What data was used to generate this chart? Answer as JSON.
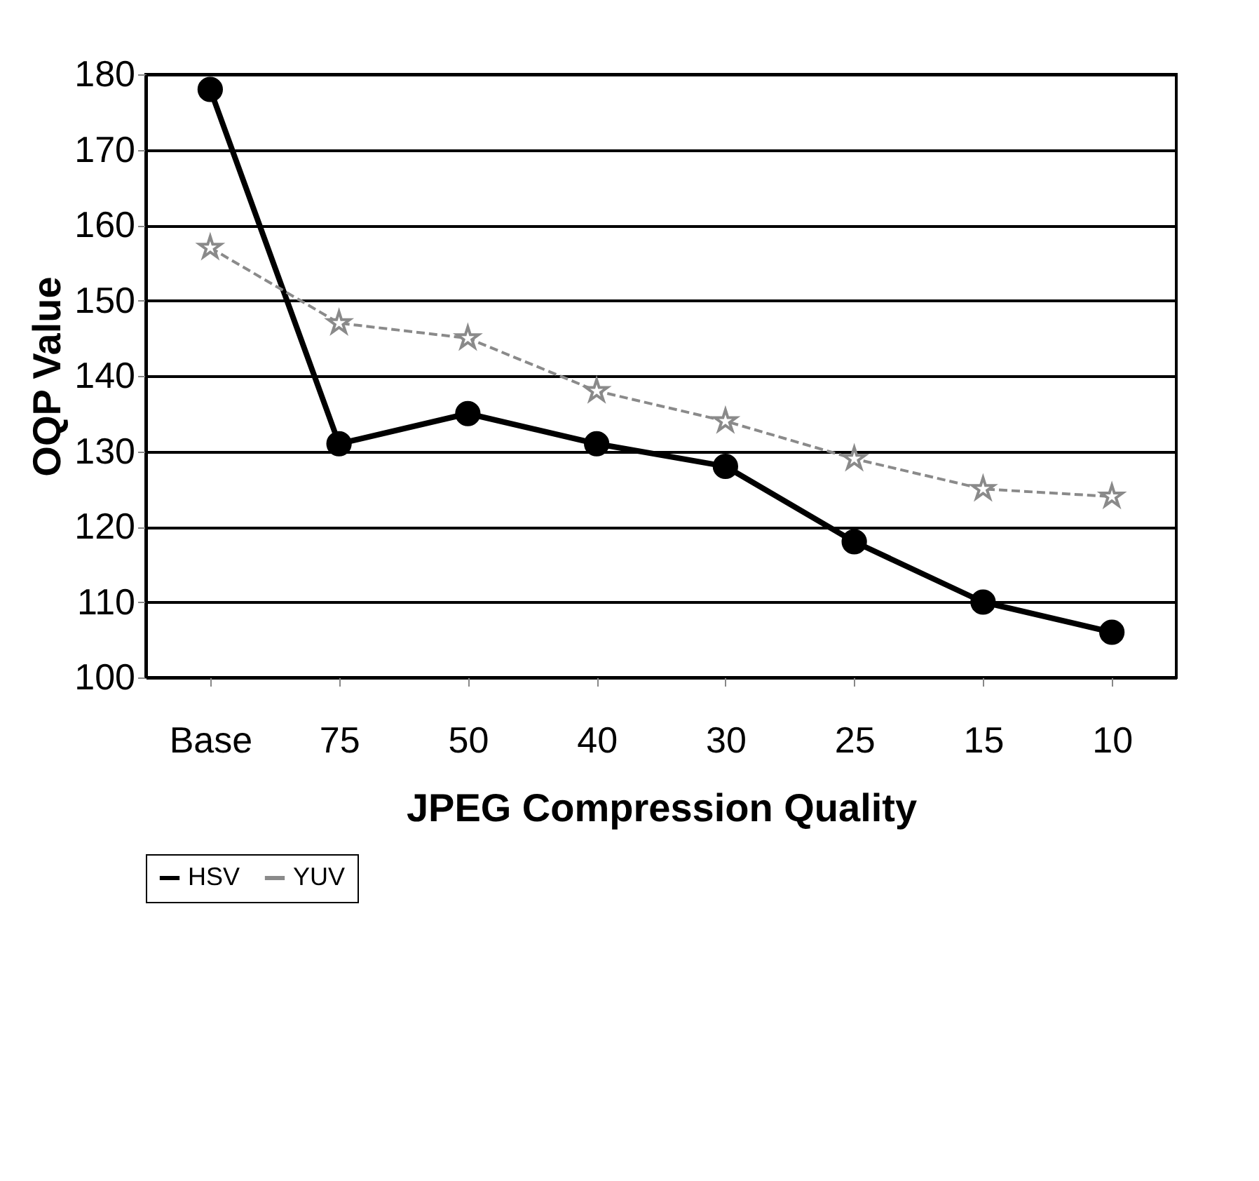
{
  "chart_data": {
    "type": "line",
    "xlabel": "JPEG Compression Quality",
    "ylabel": "OQP Value",
    "categories": [
      "Base",
      "75",
      "50",
      "40",
      "30",
      "25",
      "15",
      "10"
    ],
    "series": [
      {
        "name": "HSV",
        "color": "#000000",
        "marker": "circle",
        "line_style": "solid",
        "values": [
          178,
          131,
          135,
          131,
          128,
          118,
          110,
          106
        ]
      },
      {
        "name": "YUV",
        "color": "#8a8a8a",
        "marker": "star",
        "line_style": "dashed",
        "values": [
          157,
          147,
          145,
          138,
          134,
          129,
          125,
          124
        ]
      }
    ],
    "ylim": [
      100,
      180
    ],
    "yticks": [
      100,
      110,
      120,
      130,
      140,
      150,
      160,
      170,
      180
    ],
    "grid": "y",
    "legend": "bottom"
  }
}
